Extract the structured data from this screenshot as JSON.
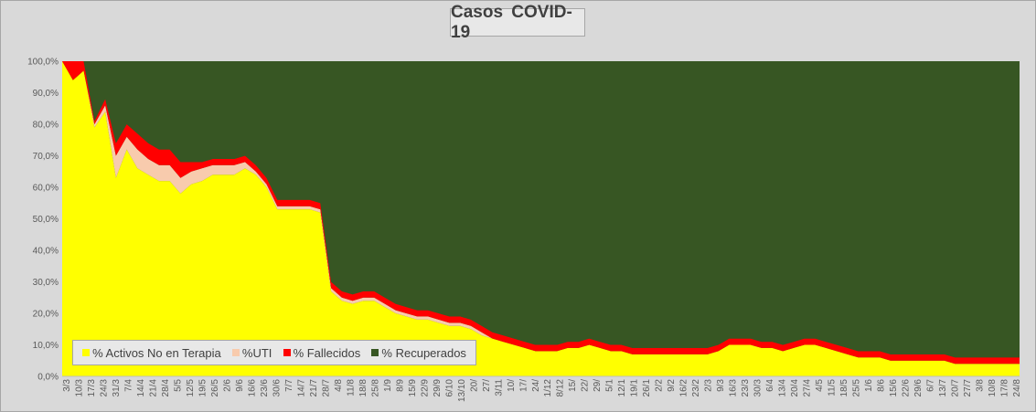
{
  "chart_data": {
    "type": "area",
    "title": "Casos COVID-19",
    "stacked": "percent",
    "ylim": [
      0,
      100
    ],
    "y_ticks": [
      "0,0%",
      "10,0%",
      "20,0%",
      "30,0%",
      "40,0%",
      "50,0%",
      "60,0%",
      "70,0%",
      "80,0%",
      "90,0%",
      "100,0%"
    ],
    "x_ticks": [
      "3/3",
      "10/3",
      "17/3",
      "24/3",
      "31/3",
      "7/4",
      "14/4",
      "21/4",
      "28/4",
      "5/5",
      "12/5",
      "19/5",
      "26/5",
      "2/6",
      "9/6",
      "16/6",
      "23/6",
      "30/6",
      "7/7",
      "14/7",
      "21/7",
      "28/7",
      "4/8",
      "11/8",
      "18/8",
      "25/8",
      "1/9",
      "8/9",
      "15/9",
      "22/9",
      "29/9",
      "6/10",
      "13/10",
      "20/",
      "27/",
      "3/11",
      "10/",
      "17/",
      "24/",
      "1/12",
      "8/12",
      "15/",
      "22/",
      "29/",
      "5/1",
      "12/1",
      "19/1",
      "26/1",
      "2/2",
      "9/2",
      "16/2",
      "23/2",
      "2/3",
      "9/3",
      "16/3",
      "23/3",
      "30/3",
      "6/4",
      "13/4",
      "20/4",
      "27/4",
      "4/5",
      "11/5",
      "18/5",
      "25/5",
      "1/6",
      "8/6",
      "15/6",
      "22/6",
      "29/6",
      "6/7",
      "13/7",
      "20/7",
      "27/7",
      "3/8",
      "10/8",
      "17/8",
      "24/8"
    ],
    "series": [
      {
        "name": "% Activos No en Terapia",
        "color": "#ffff00",
        "values": [
          100,
          94,
          97,
          79,
          84,
          63,
          72,
          66,
          64,
          62,
          62,
          58,
          61,
          62,
          64,
          64,
          64,
          66,
          64,
          60,
          53,
          53,
          53,
          53,
          52,
          27,
          24,
          23,
          24,
          24,
          22,
          20,
          19,
          18,
          18,
          17,
          16,
          16,
          15,
          13,
          12,
          11,
          10,
          9,
          8,
          8,
          8,
          9,
          9,
          10,
          9,
          8,
          8,
          7,
          7,
          7,
          7,
          7,
          7,
          7,
          7,
          8,
          10,
          10,
          10,
          9,
          9,
          8,
          9,
          10,
          10,
          9,
          8,
          7,
          6,
          6,
          6,
          5,
          5,
          5,
          5,
          5,
          5,
          4,
          4,
          4,
          4,
          4,
          4,
          4
        ]
      },
      {
        "name": "%UTI",
        "color": "#f8cbad",
        "values": [
          0,
          0,
          0,
          1,
          2,
          7,
          4,
          6,
          5,
          5,
          5,
          5,
          4,
          4,
          3,
          3,
          3,
          2,
          1,
          1,
          1,
          1,
          1,
          1,
          1,
          1,
          1,
          1,
          1,
          1,
          1,
          1,
          1,
          1,
          1,
          1,
          1,
          1,
          1,
          1,
          0,
          0,
          0,
          0,
          0,
          0,
          0,
          0,
          0,
          0,
          0,
          0,
          0,
          0,
          0,
          0,
          0,
          0,
          0,
          0,
          0,
          0,
          0,
          0,
          0,
          0,
          0,
          0,
          0,
          0,
          0,
          0,
          0,
          0,
          0,
          0,
          0,
          0,
          0,
          0,
          0,
          0,
          0,
          0,
          0,
          0,
          0,
          0,
          0,
          0
        ]
      },
      {
        "name": "% Fallecidos",
        "color": "#ff0000",
        "values": [
          0,
          6,
          3,
          1,
          2,
          4,
          4,
          5,
          5,
          5,
          5,
          5,
          3,
          2,
          2,
          2,
          2,
          2,
          2,
          2,
          2,
          2,
          2,
          2,
          2,
          2,
          2,
          2,
          2,
          2,
          2,
          2,
          2,
          2,
          2,
          2,
          2,
          2,
          2,
          2,
          2,
          2,
          2,
          2,
          2,
          2,
          2,
          2,
          2,
          2,
          2,
          2,
          2,
          2,
          2,
          2,
          2,
          2,
          2,
          2,
          2,
          2,
          2,
          2,
          2,
          2,
          2,
          2,
          2,
          2,
          2,
          2,
          2,
          2,
          2,
          2,
          2,
          2,
          2,
          2,
          2,
          2,
          2,
          2,
          2,
          2,
          2,
          2,
          2,
          2
        ]
      },
      {
        "name": "% Recuperados",
        "color": "#375623",
        "values": [
          0,
          0,
          0,
          19,
          12,
          26,
          20,
          23,
          26,
          28,
          28,
          32,
          32,
          32,
          31,
          31,
          31,
          30,
          33,
          37,
          44,
          44,
          44,
          44,
          45,
          70,
          73,
          74,
          73,
          73,
          75,
          77,
          78,
          79,
          79,
          80,
          81,
          81,
          82,
          84,
          86,
          87,
          88,
          89,
          90,
          90,
          90,
          89,
          89,
          88,
          89,
          90,
          90,
          91,
          91,
          91,
          91,
          91,
          91,
          91,
          91,
          90,
          88,
          88,
          88,
          89,
          89,
          90,
          89,
          88,
          88,
          89,
          90,
          91,
          92,
          92,
          92,
          93,
          93,
          93,
          93,
          93,
          93,
          94,
          94,
          94,
          94,
          94,
          94,
          94
        ]
      }
    ],
    "legend_position": "bottom-left",
    "grid": false,
    "colors": {
      "background": "#d9d9d9",
      "plot_background": "#375623"
    }
  }
}
